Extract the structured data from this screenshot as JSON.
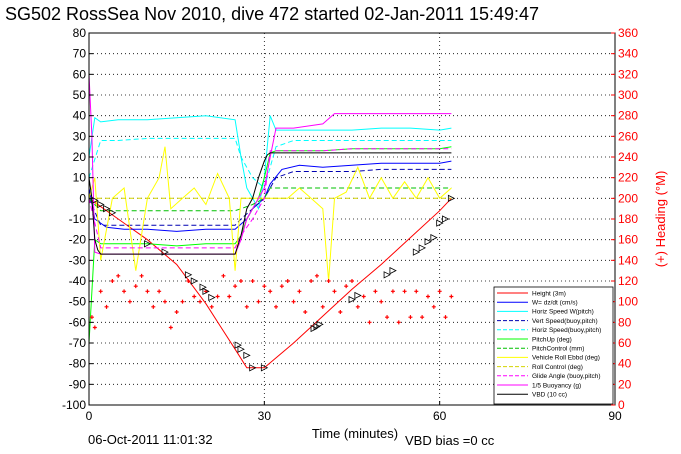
{
  "chart_data": {
    "type": "line",
    "title": "SG502 RossSea Nov 2010, dive 472 started 02-Jan-2011 15:49:47",
    "xlabel": "Time (minutes)",
    "ylabel_right": "(+) Heading (°M)",
    "footer_date": "06-Oct-2011 11:01:32",
    "footer_note": "VBD bias =0 cc",
    "xlim": [
      0,
      90
    ],
    "ylim": [
      -100,
      80
    ],
    "ylim_right": [
      0,
      360
    ],
    "x_ticks": [
      0,
      30,
      60,
      90
    ],
    "y_ticks": [
      -100,
      -90,
      -80,
      -70,
      -60,
      -50,
      -40,
      -30,
      -20,
      -10,
      0,
      10,
      20,
      30,
      40,
      50,
      60,
      70,
      80
    ],
    "y_ticks_right": [
      0,
      20,
      40,
      60,
      80,
      100,
      120,
      140,
      160,
      180,
      200,
      220,
      240,
      260,
      280,
      300,
      320,
      340,
      360
    ],
    "grid": true,
    "legend_position": "bottom-right",
    "heading_color": "#ff0000",
    "series": [
      {
        "name": "Height (3m)",
        "color": "#ff0000",
        "style": "solid",
        "x": [
          0,
          5,
          10,
          15,
          20,
          22.5,
          25,
          27,
          30,
          35,
          40,
          45,
          50,
          55,
          60,
          62
        ],
        "y": [
          0,
          -10,
          -20,
          -32,
          -51,
          -62,
          -73,
          -82,
          -82,
          -70,
          -57,
          -44,
          -32,
          -19,
          -6,
          0
        ]
      },
      {
        "name": "W= dz/dt (cm/s)",
        "color": "#0000ff",
        "style": "solid",
        "x": [
          0,
          1,
          3,
          6,
          10,
          15,
          20,
          25,
          27,
          28,
          30,
          31,
          33,
          36,
          40,
          45,
          50,
          55,
          60,
          62
        ],
        "y": [
          5,
          -10,
          -14,
          -15,
          -15,
          -16,
          -15,
          -15,
          -10,
          -5,
          0,
          7,
          14,
          16,
          15,
          16,
          17,
          17,
          17,
          18
        ]
      },
      {
        "name": "Horiz Speed W(pitch)",
        "color": "#00ffff",
        "style": "solid",
        "x": [
          0,
          1,
          2,
          5,
          10,
          15,
          20,
          25,
          26,
          27,
          28,
          29,
          30,
          31,
          32,
          35,
          40,
          45,
          50,
          55,
          60,
          62
        ],
        "y": [
          20,
          39,
          37,
          38,
          38,
          39,
          40,
          38,
          20,
          5,
          0,
          -5,
          10,
          40,
          33,
          33,
          33,
          33,
          34,
          34,
          33,
          34
        ]
      },
      {
        "name": "Vert Speed(buoy,pitch)",
        "color": "#0000b0",
        "style": "dashed",
        "x": [
          0,
          2,
          5,
          10,
          15,
          20,
          25,
          26,
          28,
          30,
          32,
          35,
          40,
          45,
          50,
          55,
          60,
          62
        ],
        "y": [
          0,
          -13,
          -13,
          -13,
          -13,
          -13,
          -13,
          -10,
          -5,
          0,
          10,
          13,
          13,
          13,
          14,
          14,
          14,
          14
        ]
      },
      {
        "name": "Horiz Speed(buoy,pitch)",
        "color": "#00ffff",
        "style": "dashed",
        "x": [
          0,
          2,
          5,
          10,
          15,
          20,
          25,
          26,
          28,
          30,
          32,
          35,
          40,
          45,
          50,
          55,
          60,
          62
        ],
        "y": [
          10,
          28,
          28,
          29,
          29,
          29,
          29,
          20,
          10,
          5,
          25,
          28,
          28,
          28,
          28,
          28,
          28,
          28
        ]
      },
      {
        "name": "PitchUp (deg)",
        "color": "#00ff00",
        "style": "solid",
        "x": [
          0,
          1,
          2,
          5,
          10,
          15,
          20,
          25,
          26,
          27,
          28,
          29,
          30,
          31,
          32,
          35,
          40,
          45,
          50,
          55,
          60,
          62
        ],
        "y": [
          -70,
          -20,
          -22,
          -22,
          -22,
          -23,
          -22,
          -22,
          -18,
          -10,
          -5,
          0,
          10,
          22,
          23,
          23,
          23,
          24,
          24,
          24,
          24,
          25
        ]
      },
      {
        "name": "PitchControl (mm)",
        "color": "#00c000",
        "style": "dashed",
        "x": [
          0,
          2,
          5,
          10,
          15,
          20,
          25,
          26,
          28,
          30,
          31,
          35,
          40,
          45,
          50,
          55,
          60,
          62
        ],
        "y": [
          0,
          -6,
          -6,
          -6,
          -6,
          -6,
          -6,
          -5,
          -3,
          0,
          5,
          5,
          5,
          5,
          5,
          5,
          5,
          5
        ]
      },
      {
        "name": "Vehicle Roll Ebbd (deg)",
        "color": "#ffff00",
        "style": "solid",
        "x": [
          0,
          1,
          2,
          4,
          6,
          8,
          10,
          12,
          13,
          14,
          16,
          18,
          20,
          22,
          24,
          25,
          26,
          28,
          30,
          32,
          34,
          36,
          38,
          40,
          41,
          42,
          44,
          46,
          48,
          50,
          52,
          54,
          56,
          58,
          60,
          62
        ],
        "y": [
          0,
          10,
          -30,
          0,
          5,
          -35,
          0,
          10,
          25,
          -5,
          0,
          5,
          -3,
          12,
          0,
          -35,
          0,
          0,
          0,
          0,
          0,
          5,
          0,
          -5,
          -40,
          0,
          3,
          15,
          0,
          10,
          0,
          8,
          0,
          10,
          0,
          5
        ]
      },
      {
        "name": "Roll Control (deg)",
        "color": "#d4d400",
        "style": "dashed",
        "x": [
          0,
          2,
          10,
          20,
          25,
          28,
          30,
          40,
          50,
          60,
          62
        ],
        "y": [
          0,
          0,
          0,
          0,
          0,
          0,
          0,
          0,
          0,
          0,
          0
        ]
      },
      {
        "name": "Glide Angle (buoy,pitch)",
        "color": "#ff00ff",
        "style": "dashed",
        "x": [
          0,
          2,
          5,
          10,
          15,
          20,
          25,
          26,
          28,
          30,
          31,
          35,
          40,
          45,
          50,
          55,
          60,
          62
        ],
        "y": [
          0,
          -24,
          -24,
          -24,
          -24,
          -24,
          -24,
          -18,
          -10,
          0,
          23,
          23,
          23,
          24,
          24,
          24,
          24,
          24
        ]
      },
      {
        "name": "1/5 Buoyancy (g)",
        "color": "#ff00ff",
        "style": "solid",
        "x": [
          0,
          0.5,
          1,
          2,
          5,
          10,
          15,
          20,
          25,
          26,
          27,
          28,
          29,
          30,
          31,
          32,
          35,
          40,
          42,
          45,
          50,
          55,
          60,
          62
        ],
        "y": [
          60,
          30,
          -26,
          -27,
          -27,
          -27,
          -27,
          -27,
          -27,
          -20,
          -10,
          -5,
          0,
          5,
          20,
          34,
          34,
          36,
          41,
          41,
          41,
          41,
          41,
          41
        ]
      },
      {
        "name": "VBD (10 cc)",
        "color": "#000000",
        "style": "solid",
        "x": [
          0,
          0.5,
          1,
          1.5,
          2,
          5,
          10,
          15,
          20,
          25,
          26,
          27,
          28,
          29,
          30,
          30.5,
          31,
          35,
          40,
          45,
          50,
          55,
          60,
          62
        ],
        "y": [
          10,
          0,
          -20,
          -25,
          -27,
          -27,
          -27,
          -27,
          -27,
          -27,
          -18,
          -5,
          0,
          10,
          18,
          21,
          22,
          22,
          22,
          22,
          22,
          22,
          22,
          22
        ]
      }
    ],
    "heading": {
      "name": "Heading",
      "color": "#ff0000",
      "x": [
        0.5,
        1,
        2,
        3,
        4,
        5,
        6,
        7,
        8,
        9,
        10,
        11,
        12,
        13,
        14,
        15,
        16,
        17,
        18,
        19,
        20,
        21,
        22,
        23,
        24,
        25,
        26,
        27,
        28,
        29,
        30,
        31,
        32,
        33,
        34,
        35,
        36,
        37,
        38,
        39,
        40,
        41,
        42,
        43,
        44,
        45,
        46,
        47,
        48,
        49,
        50,
        51,
        52,
        53,
        54,
        55,
        56,
        57,
        58,
        59,
        60,
        61,
        62
      ],
      "y": [
        85,
        75,
        110,
        95,
        120,
        125,
        110,
        100,
        115,
        125,
        110,
        95,
        110,
        100,
        75,
        90,
        100,
        120,
        105,
        100,
        110,
        95,
        105,
        125,
        105,
        115,
        120,
        95,
        120,
        100,
        115,
        110,
        95,
        115,
        120,
        100,
        110,
        90,
        120,
        125,
        95,
        120,
        110,
        90,
        115,
        120,
        95,
        105,
        80,
        110,
        100,
        85,
        110,
        80,
        110,
        85,
        110,
        85,
        105,
        95,
        110,
        85,
        105
      ]
    },
    "markers": {
      "name": "Height triangles",
      "color": "#000000",
      "x": [
        1,
        2,
        3,
        4,
        10,
        13,
        17,
        18,
        19.5,
        20,
        21,
        25.5,
        26,
        27,
        28,
        30,
        38.5,
        39,
        39.5,
        45,
        46,
        51,
        52,
        56,
        57,
        58,
        59,
        60,
        61,
        62
      ],
      "y": [
        -1,
        -3,
        -5,
        -7,
        -22,
        -26,
        -37,
        -40,
        -43,
        -45,
        -48,
        -71,
        -73,
        -76,
        -82,
        -82,
        -63,
        -62,
        -61,
        -49,
        -47,
        -37,
        -35,
        -26,
        -24,
        -21,
        -19,
        -12,
        -10,
        0
      ]
    }
  }
}
